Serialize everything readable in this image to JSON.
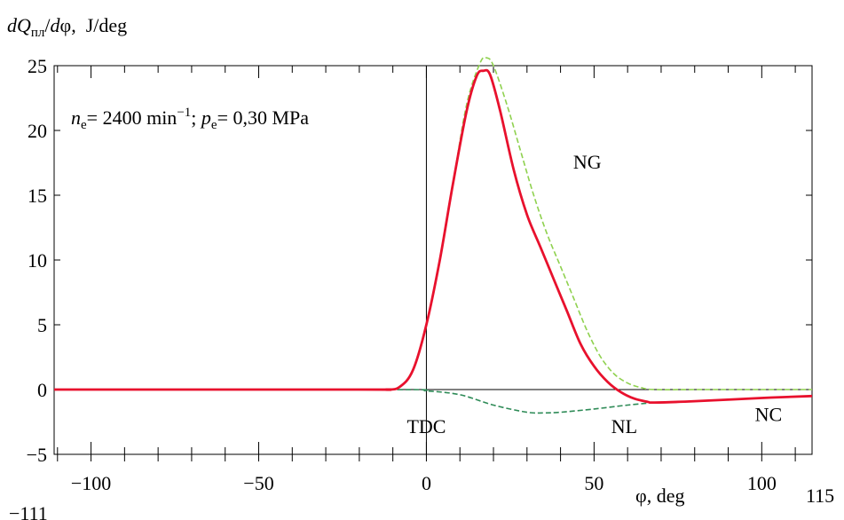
{
  "chart_data": {
    "type": "line",
    "ylabel": "J/deg",
    "xlabel": "φ, deg",
    "conditions": {
      "ne_value": "= 2400 min",
      "ne_exp": "−1",
      "pe_value": "= 0,30 MPa"
    },
    "xlim": [
      -111,
      115
    ],
    "ylim": [
      -5,
      25
    ],
    "x_ticks": [
      -100,
      -50,
      0,
      50,
      100
    ],
    "x_tick_labels": [
      "−100",
      "−50",
      "0",
      "50",
      "100"
    ],
    "x_end_labels": {
      "min": "−111",
      "max": "115"
    },
    "y_ticks": [
      -5,
      0,
      5,
      10,
      15,
      20,
      25
    ],
    "y_tick_labels": [
      "−5",
      "0",
      "5",
      "10",
      "15",
      "20",
      "25"
    ],
    "reference_line": {
      "x": 0,
      "label": "TDC"
    },
    "grid": false,
    "series": [
      {
        "name": "NG",
        "color": "#8fd14f",
        "style": "dashed",
        "x": [
          -111,
          -20,
          -12,
          -8,
          -4,
          0,
          4,
          8,
          12,
          16,
          18,
          20,
          24,
          28,
          32,
          36,
          40,
          44,
          48,
          52,
          56,
          60,
          64,
          68,
          80,
          100,
          115
        ],
        "y": [
          0,
          0,
          0,
          0.2,
          1.5,
          5,
          10,
          16,
          22,
          25.2,
          25.6,
          25,
          22,
          18.5,
          15,
          12,
          9.5,
          7,
          4.5,
          2.5,
          1.2,
          0.5,
          0.15,
          0,
          0,
          0,
          0
        ]
      },
      {
        "name": "NL",
        "color": "#2e8b57",
        "style": "dashed",
        "x": [
          -111,
          -10,
          0,
          10,
          20,
          30,
          35,
          40,
          50,
          60,
          68
        ],
        "y": [
          0,
          0,
          -0.1,
          -0.4,
          -1.2,
          -1.75,
          -1.8,
          -1.75,
          -1.5,
          -1.2,
          -1.0
        ]
      },
      {
        "name": "NC",
        "color": "#e8112d",
        "style": "solid",
        "x": [
          -111,
          -20,
          -12,
          -8,
          -4,
          0,
          4,
          8,
          12,
          15,
          17,
          19,
          22,
          26,
          30,
          34,
          38,
          42,
          46,
          50,
          54,
          58,
          62,
          66,
          68,
          80,
          100,
          115
        ],
        "y": [
          0,
          0,
          0,
          0.2,
          1.5,
          5,
          10,
          16,
          21.5,
          24.2,
          24.6,
          24.3,
          21.5,
          17,
          13.5,
          11,
          8.5,
          6,
          3.5,
          1.8,
          0.6,
          -0.2,
          -0.7,
          -0.95,
          -1.0,
          -0.9,
          -0.65,
          -0.5
        ]
      }
    ],
    "annotations": [
      {
        "text": "NG",
        "x": 48,
        "y": 17.6
      },
      {
        "text": "NL",
        "x": 59,
        "y": -2.8
      },
      {
        "text": "NC",
        "x": 102,
        "y": -1.9
      }
    ]
  }
}
